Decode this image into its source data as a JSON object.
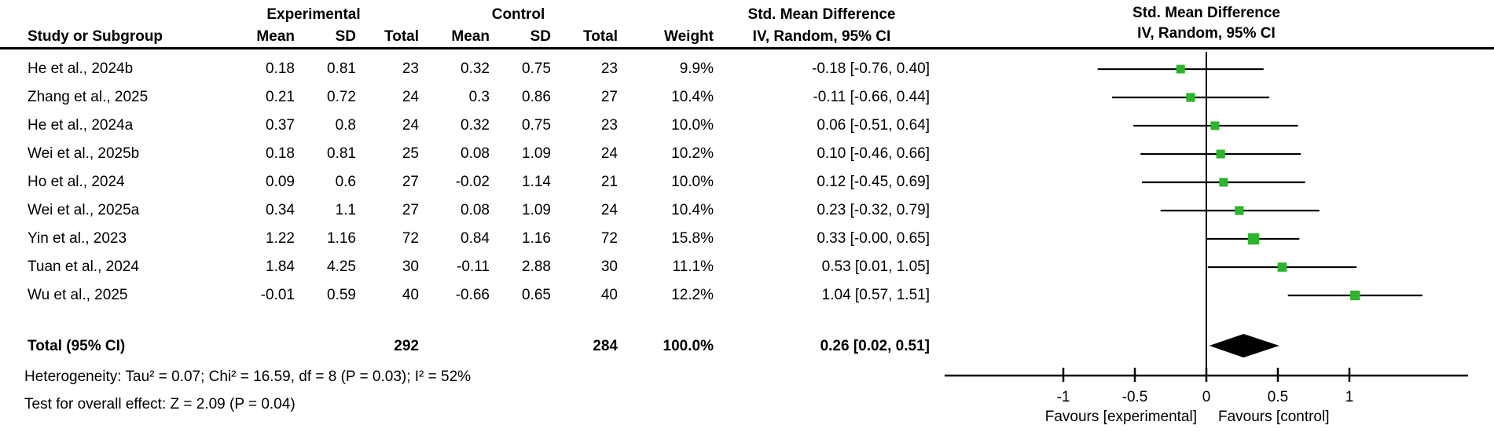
{
  "header": {
    "group_experimental": "Experimental",
    "group_control": "Control",
    "group_smd": "Std. Mean Difference",
    "col_study": "Study or Subgroup",
    "col_mean": "Mean",
    "col_sd": "SD",
    "col_total": "Total",
    "col_mean2": "Mean",
    "col_sd2": "SD",
    "col_total2": "Total",
    "col_weight": "Weight",
    "col_ci": "IV, Random, 95% CI"
  },
  "plot_header": {
    "line1": "Std. Mean Difference",
    "line2": "IV, Random, 95% CI"
  },
  "chart_data": {
    "type": "forest",
    "effect_measure": "Std. Mean Difference, IV, Random, 95% CI",
    "studies": [
      {
        "study": "He et al., 2024b",
        "exp_mean": "0.18",
        "exp_sd": "0.81",
        "exp_total": "23",
        "ctl_mean": "0.32",
        "ctl_sd": "0.75",
        "ctl_total": "23",
        "weight": "9.9%",
        "weight_pct": 9.9,
        "ci_label": "-0.18 [-0.76, 0.40]",
        "smd": -0.18,
        "ci_low": -0.76,
        "ci_high": 0.4
      },
      {
        "study": "Zhang et al., 2025",
        "exp_mean": "0.21",
        "exp_sd": "0.72",
        "exp_total": "24",
        "ctl_mean": "0.3",
        "ctl_sd": "0.86",
        "ctl_total": "27",
        "weight": "10.4%",
        "weight_pct": 10.4,
        "ci_label": "-0.11 [-0.66, 0.44]",
        "smd": -0.11,
        "ci_low": -0.66,
        "ci_high": 0.44
      },
      {
        "study": "He et al., 2024a",
        "exp_mean": "0.37",
        "exp_sd": "0.8",
        "exp_total": "24",
        "ctl_mean": "0.32",
        "ctl_sd": "0.75",
        "ctl_total": "23",
        "weight": "10.0%",
        "weight_pct": 10.0,
        "ci_label": "0.06 [-0.51, 0.64]",
        "smd": 0.06,
        "ci_low": -0.51,
        "ci_high": 0.64
      },
      {
        "study": "Wei et al., 2025b",
        "exp_mean": "0.18",
        "exp_sd": "0.81",
        "exp_total": "25",
        "ctl_mean": "0.08",
        "ctl_sd": "1.09",
        "ctl_total": "24",
        "weight": "10.2%",
        "weight_pct": 10.2,
        "ci_label": "0.10 [-0.46, 0.66]",
        "smd": 0.1,
        "ci_low": -0.46,
        "ci_high": 0.66
      },
      {
        "study": "Ho et al., 2024",
        "exp_mean": "0.09",
        "exp_sd": "0.6",
        "exp_total": "27",
        "ctl_mean": "-0.02",
        "ctl_sd": "1.14",
        "ctl_total": "21",
        "weight": "10.0%",
        "weight_pct": 10.0,
        "ci_label": "0.12 [-0.45, 0.69]",
        "smd": 0.12,
        "ci_low": -0.45,
        "ci_high": 0.69
      },
      {
        "study": "Wei et al., 2025a",
        "exp_mean": "0.34",
        "exp_sd": "1.1",
        "exp_total": "27",
        "ctl_mean": "0.08",
        "ctl_sd": "1.09",
        "ctl_total": "24",
        "weight": "10.4%",
        "weight_pct": 10.4,
        "ci_label": "0.23 [-0.32, 0.79]",
        "smd": 0.23,
        "ci_low": -0.32,
        "ci_high": 0.79
      },
      {
        "study": "Yin et al., 2023",
        "exp_mean": "1.22",
        "exp_sd": "1.16",
        "exp_total": "72",
        "ctl_mean": "0.84",
        "ctl_sd": "1.16",
        "ctl_total": "72",
        "weight": "15.8%",
        "weight_pct": 15.8,
        "ci_label": "0.33 [-0.00, 0.65]",
        "smd": 0.33,
        "ci_low": 0.0,
        "ci_high": 0.65
      },
      {
        "study": "Tuan et al., 2024",
        "exp_mean": "1.84",
        "exp_sd": "4.25",
        "exp_total": "30",
        "ctl_mean": "-0.11",
        "ctl_sd": "2.88",
        "ctl_total": "30",
        "weight": "11.1%",
        "weight_pct": 11.1,
        "ci_label": "0.53 [0.01, 1.05]",
        "smd": 0.53,
        "ci_low": 0.01,
        "ci_high": 1.05
      },
      {
        "study": "Wu et al., 2025",
        "exp_mean": "-0.01",
        "exp_sd": "0.59",
        "exp_total": "40",
        "ctl_mean": "-0.66",
        "ctl_sd": "0.65",
        "ctl_total": "40",
        "weight": "12.2%",
        "weight_pct": 12.2,
        "ci_label": "1.04 [0.57, 1.51]",
        "smd": 1.04,
        "ci_low": 0.57,
        "ci_high": 1.51
      }
    ],
    "total": {
      "label": "Total (95% CI)",
      "exp_total": "292",
      "ctl_total": "284",
      "weight": "100.0%",
      "ci_label": "0.26 [0.02, 0.51]",
      "smd": 0.26,
      "ci_low": 0.02,
      "ci_high": 0.51
    },
    "footnotes": {
      "heterogeneity": "Heterogeneity: Tau² = 0.07; Chi² = 16.59, df = 8 (P = 0.03); I² = 52%",
      "overall_effect": "Test for overall effect: Z = 2.09 (P = 0.04)"
    },
    "axis": {
      "ticks": [
        -1,
        -0.5,
        0,
        0.5,
        1
      ],
      "tick_labels": [
        "-1",
        "-0.5",
        "0",
        "0.5",
        "1"
      ],
      "xmin": -1.83,
      "xmax": 1.83,
      "grid": false
    },
    "favours_left": "Favours [experimental]",
    "favours_right": "Favours [control]",
    "colors": {
      "square": "#2bb52b",
      "diamond": "#000000",
      "line": "#000000",
      "text": "#000000"
    }
  }
}
